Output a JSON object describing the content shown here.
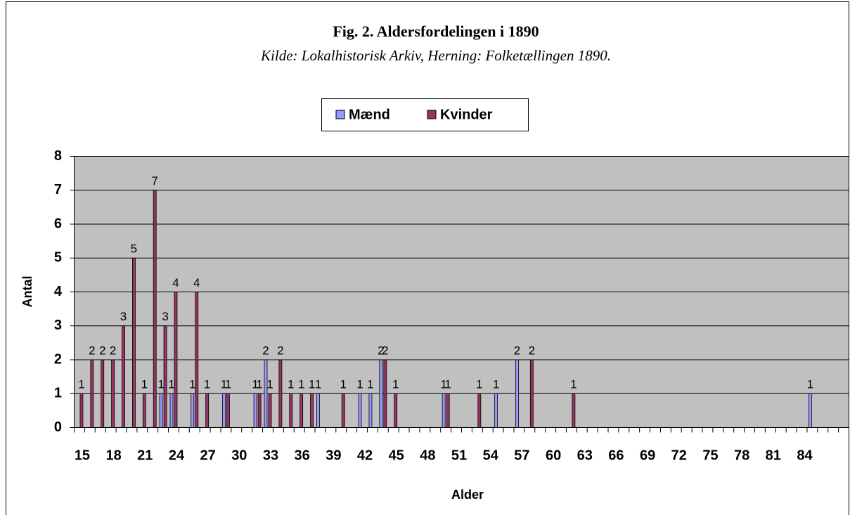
{
  "chart_data": {
    "type": "bar",
    "title": "Fig. 2. Aldersfordelingen i 1890",
    "subtitle": "Kilde: Lokalhistorisk Arkiv, Herning: Folketællingen 1890.",
    "x_label": "Alder",
    "y_label": "Antal",
    "categories": [
      "15",
      null,
      null,
      "18",
      null,
      null,
      "21",
      null,
      null,
      "24",
      null,
      null,
      "27",
      null,
      null,
      "30",
      null,
      null,
      "33",
      null,
      null,
      "36",
      null,
      null,
      "39",
      null,
      null,
      "42",
      null,
      null,
      "45",
      null,
      null,
      "48",
      null,
      null,
      "51",
      null,
      null,
      "54",
      null,
      null,
      "57",
      null,
      null,
      "60",
      null,
      null,
      "63",
      null,
      null,
      "66",
      null,
      null,
      "69",
      null,
      null,
      "72",
      null,
      null,
      "75",
      null,
      null,
      "78",
      null,
      null,
      "81",
      null,
      null,
      "84",
      null,
      null,
      null,
      null
    ],
    "series": [
      {
        "name": "Mænd",
        "color": "#9999ff",
        "values": [
          null,
          null,
          null,
          null,
          null,
          null,
          null,
          null,
          1,
          1,
          null,
          1,
          null,
          null,
          1,
          null,
          null,
          1,
          2,
          null,
          null,
          null,
          null,
          1,
          null,
          null,
          null,
          1,
          1,
          2,
          null,
          null,
          null,
          null,
          null,
          1,
          null,
          null,
          null,
          null,
          1,
          null,
          2,
          null,
          null,
          null,
          null,
          null,
          null,
          null,
          null,
          null,
          null,
          null,
          null,
          null,
          null,
          null,
          null,
          null,
          null,
          null,
          null,
          null,
          null,
          null,
          null,
          null,
          null,
          null,
          1,
          null,
          null,
          null
        ]
      },
      {
        "name": "Kvinder",
        "color": "#993366",
        "values": [
          1,
          2,
          2,
          2,
          3,
          5,
          1,
          7,
          3,
          4,
          null,
          4,
          1,
          null,
          1,
          null,
          null,
          1,
          1,
          2,
          1,
          1,
          1,
          null,
          null,
          1,
          null,
          null,
          null,
          2,
          1,
          null,
          null,
          null,
          null,
          1,
          null,
          null,
          1,
          null,
          null,
          null,
          null,
          2,
          null,
          null,
          null,
          1,
          null,
          null,
          null,
          null,
          null,
          null,
          null,
          null,
          null,
          null,
          null,
          null,
          null,
          null,
          null,
          null,
          null,
          null,
          null,
          null,
          null,
          null,
          null,
          null,
          null,
          null
        ]
      }
    ],
    "ylim": [
      0,
      8
    ],
    "yticks": [
      0,
      1,
      2,
      3,
      4,
      5,
      6,
      7,
      8
    ],
    "grid": true,
    "legend": "top"
  }
}
